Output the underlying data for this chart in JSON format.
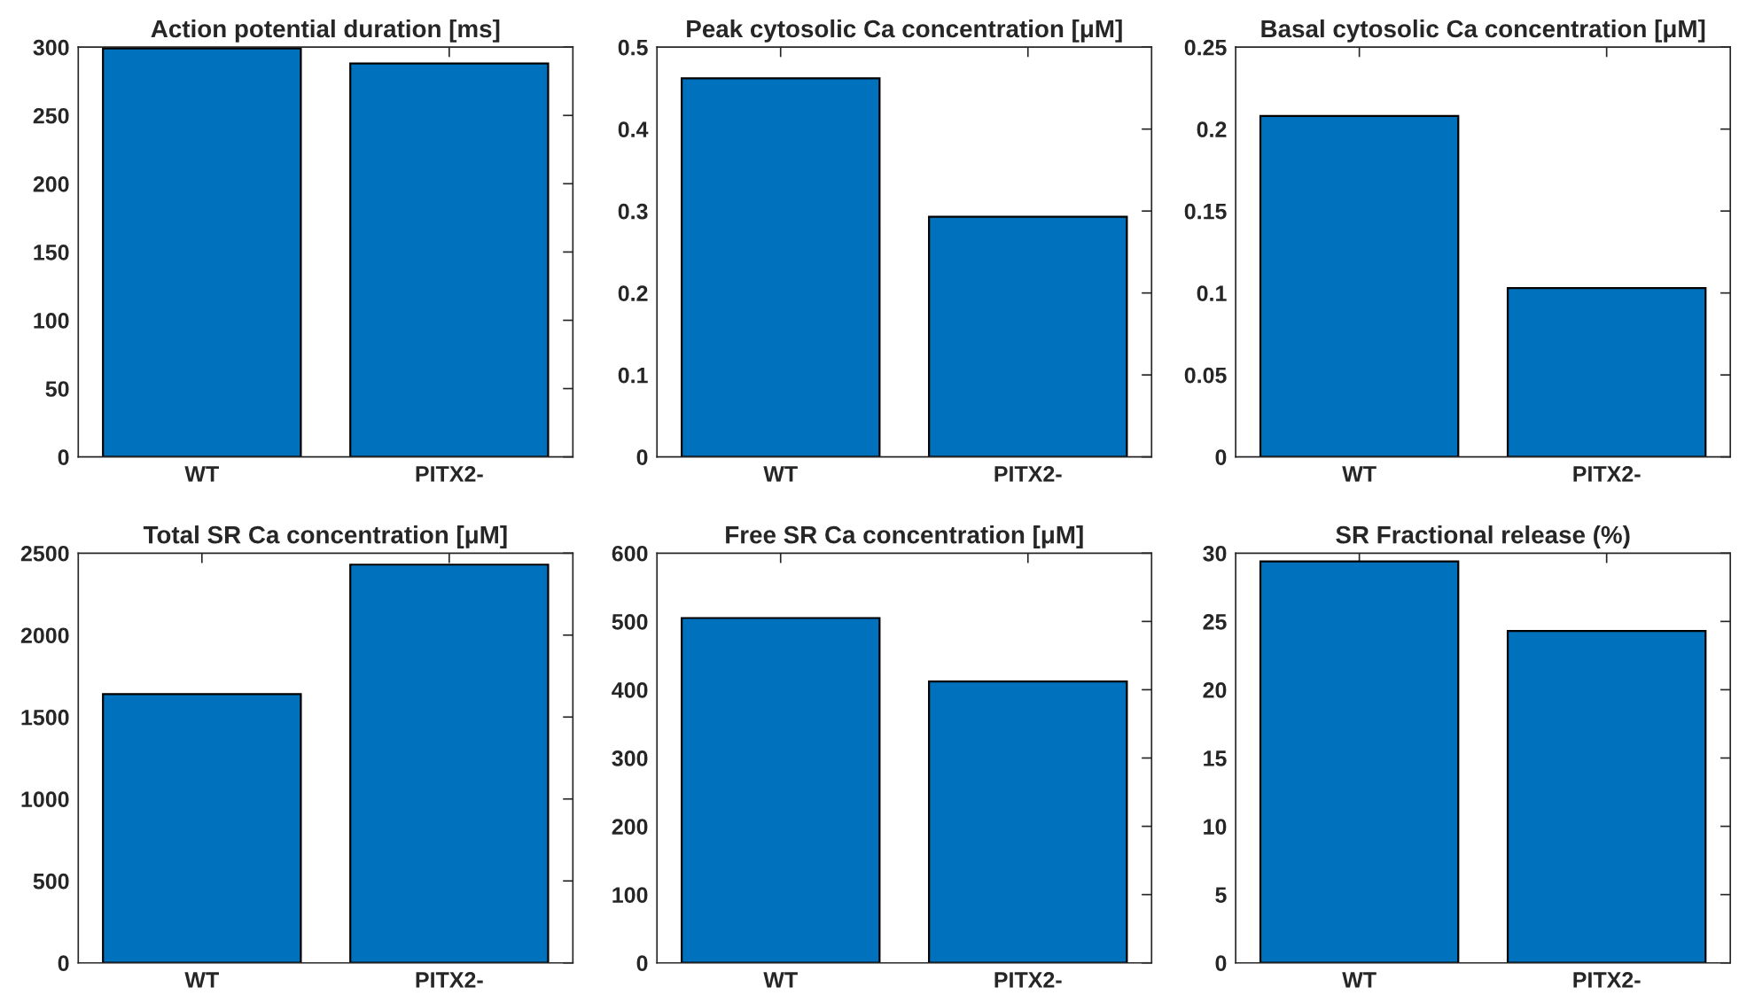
{
  "chart_data": [
    {
      "type": "bar",
      "title": "Action potential duration [ms]",
      "categories": [
        "WT",
        "PITX2-"
      ],
      "values": [
        299,
        288
      ],
      "color": "#0072bd",
      "ylim": [
        0,
        300
      ],
      "yticks": [
        0,
        50,
        100,
        150,
        200,
        250,
        300
      ],
      "grid": false
    },
    {
      "type": "bar",
      "title": "Peak cytosolic Ca concentration [μM]",
      "categories": [
        "WT",
        "PITX2-"
      ],
      "values": [
        0.462,
        0.293
      ],
      "color": "#0072bd",
      "ylim": [
        0,
        0.5
      ],
      "yticks": [
        0,
        0.1,
        0.2,
        0.3,
        0.4,
        0.5
      ],
      "grid": false
    },
    {
      "type": "bar",
      "title": "Basal cytosolic Ca concentration [μM]",
      "categories": [
        "WT",
        "PITX2-"
      ],
      "values": [
        0.208,
        0.103
      ],
      "color": "#0072bd",
      "ylim": [
        0,
        0.25
      ],
      "yticks": [
        0,
        0.05,
        0.1,
        0.15,
        0.2,
        0.25
      ],
      "grid": false
    },
    {
      "type": "bar",
      "title": "Total SR Ca concentration [μM]",
      "categories": [
        "WT",
        "PITX2-"
      ],
      "values": [
        1640,
        2430
      ],
      "color": "#0072bd",
      "ylim": [
        0,
        2500
      ],
      "yticks": [
        0,
        500,
        1000,
        1500,
        2000,
        2500
      ],
      "grid": false
    },
    {
      "type": "bar",
      "title": "Free SR Ca concentration [μM]",
      "categories": [
        "WT",
        "PITX2-"
      ],
      "values": [
        505,
        412
      ],
      "color": "#0072bd",
      "ylim": [
        0,
        600
      ],
      "yticks": [
        0,
        100,
        200,
        300,
        400,
        500,
        600
      ],
      "grid": false
    },
    {
      "type": "bar",
      "title": "SR Fractional release (%)",
      "categories": [
        "WT",
        "PITX2-"
      ],
      "values": [
        29.4,
        24.3
      ],
      "color": "#0072bd",
      "ylim": [
        0,
        30
      ],
      "yticks": [
        0,
        5,
        10,
        15,
        20,
        25,
        30
      ],
      "grid": false
    }
  ]
}
